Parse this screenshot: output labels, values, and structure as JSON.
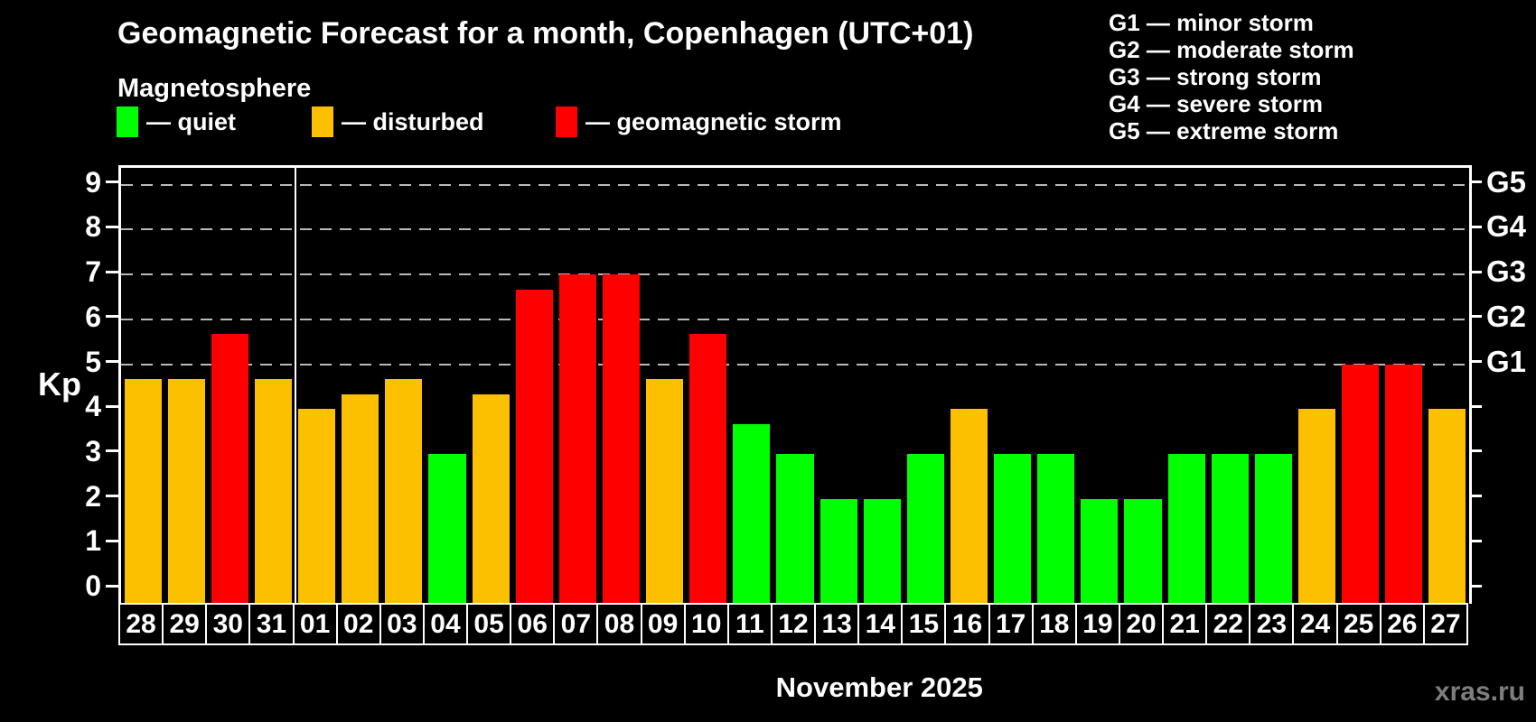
{
  "title": "Geomagnetic Forecast for a month, Copenhagen (UTC+01)",
  "subtitle": "Magnetosphere",
  "legend": {
    "quiet": {
      "label": "— quiet",
      "color": "#00ff00"
    },
    "disturbed": {
      "label": "— disturbed",
      "color": "#fdc000"
    },
    "storm": {
      "label": "— geomagnetic storm",
      "color": "#ff0000"
    }
  },
  "g_legend": [
    "G1 — minor storm",
    "G2 — moderate storm",
    "G3 — strong storm",
    "G4 — severe storm",
    "G5 — extreme storm"
  ],
  "y_axis": {
    "label": "Kp",
    "ticks": [
      0,
      1,
      2,
      3,
      4,
      5,
      6,
      7,
      8,
      9
    ]
  },
  "right_axis": {
    "labels": [
      "G1",
      "G2",
      "G3",
      "G4",
      "G5"
    ],
    "at_kp": [
      5,
      6,
      7,
      8,
      9
    ]
  },
  "x_axis_title": "November 2025",
  "watermark": "xras.ru",
  "chart_data": {
    "type": "bar",
    "title": "Geomagnetic Forecast for a month, Copenhagen (UTC+01)",
    "ylabel": "Kp",
    "ylim": [
      0,
      9
    ],
    "gridlines_at": [
      5,
      6,
      7,
      8,
      9
    ],
    "grid": "dashed horizontal at G-storm levels only",
    "legend_position": "top-left (activity colors) and top-right (G scale)",
    "categories": [
      "28",
      "29",
      "30",
      "31",
      "01",
      "02",
      "03",
      "04",
      "05",
      "06",
      "07",
      "08",
      "09",
      "10",
      "11",
      "12",
      "13",
      "14",
      "15",
      "16",
      "17",
      "18",
      "19",
      "20",
      "21",
      "22",
      "23",
      "24",
      "25",
      "26",
      "27"
    ],
    "values": [
      4.67,
      4.67,
      5.67,
      4.67,
      4.0,
      4.33,
      4.67,
      3.0,
      4.33,
      6.67,
      7.0,
      7.0,
      4.67,
      5.67,
      3.67,
      3.0,
      2.0,
      2.0,
      3.0,
      4.0,
      3.0,
      3.0,
      2.0,
      2.0,
      3.0,
      3.0,
      3.0,
      4.0,
      5.0,
      5.0,
      4.0
    ],
    "statuses": [
      "disturbed",
      "disturbed",
      "storm",
      "disturbed",
      "disturbed",
      "disturbed",
      "disturbed",
      "quiet",
      "disturbed",
      "storm",
      "storm",
      "storm",
      "disturbed",
      "storm",
      "quiet",
      "quiet",
      "quiet",
      "quiet",
      "quiet",
      "disturbed",
      "quiet",
      "quiet",
      "quiet",
      "quiet",
      "quiet",
      "quiet",
      "quiet",
      "disturbed",
      "storm",
      "storm",
      "disturbed"
    ],
    "colors": {
      "quiet": "#00ff00",
      "disturbed": "#fdc000",
      "storm": "#ff0000"
    },
    "month_boundary_after_index": 3,
    "xlabel": "November 2025"
  }
}
